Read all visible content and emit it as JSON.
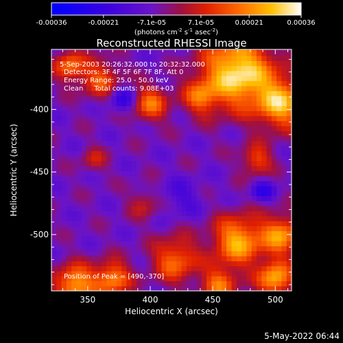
{
  "chart_data": {
    "type": "heatmap",
    "title": "Reconstructed RHESSI Image",
    "xlabel": "Heliocentric X (arcsec)",
    "ylabel": "Heliocentric Y (arcsec)",
    "xlim": [
      321,
      513
    ],
    "ylim": [
      -545,
      -352
    ],
    "x_ticks": [
      350,
      400,
      450,
      500
    ],
    "y_ticks": [
      -500,
      -450,
      -400
    ],
    "colorbar": {
      "ticks": [
        "-0.00036",
        "-0.00021",
        "-7.1e-05",
        "7.1e-05",
        "0.00021",
        "0.00036"
      ],
      "unit_parts": [
        "(photons cm",
        "-2",
        " s",
        "-1",
        " asec",
        "-2",
        ")"
      ],
      "range": [
        -0.00036,
        0.00036
      ]
    },
    "annotations": [
      "5-Sep-2003 20:26:32.000 to 20:32:32.000",
      "Detectors: 3F 4F 5F 6F 7F 8F, Att 0",
      "Energy Range: 25.0 - 50.0 keV",
      "Clean     Total counts: 9.08E+03"
    ],
    "peak_label": "Position of Peak = [490,-370]",
    "timestamp": "5-May-2022 06:44",
    "grid": false
  }
}
